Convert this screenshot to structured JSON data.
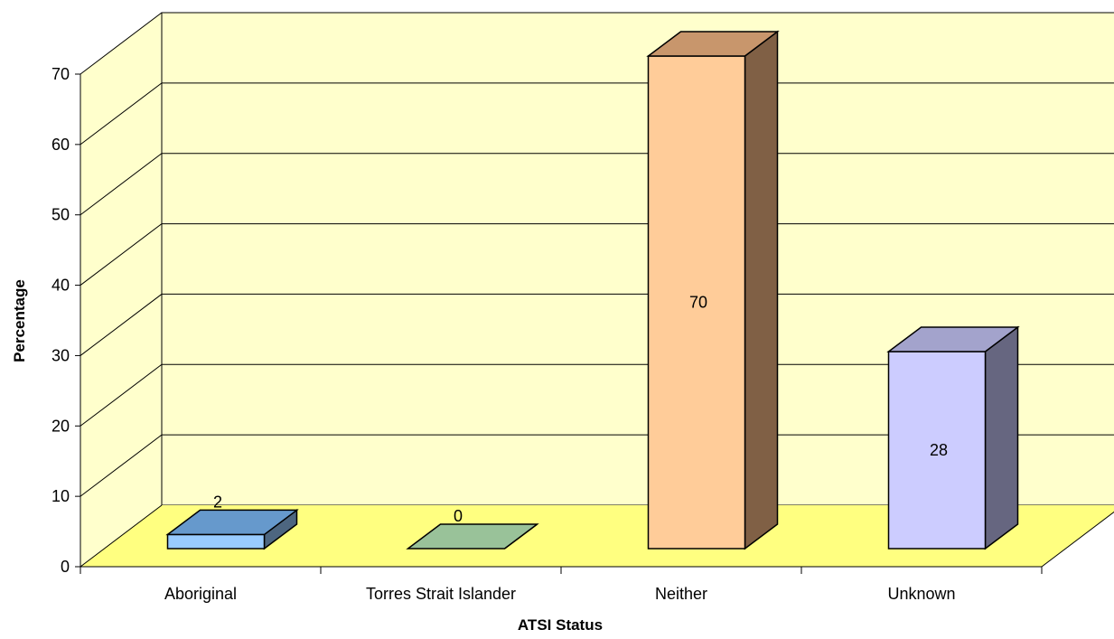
{
  "chart_data": {
    "type": "bar",
    "title": "",
    "xlabel": "ATSI Status",
    "ylabel": "Percentage",
    "categories": [
      "Aboriginal",
      "Torres Strait Islander",
      "Neither",
      "Unknown"
    ],
    "values": [
      2,
      0,
      70,
      28
    ],
    "data_labels": [
      "2",
      "0",
      "70",
      "28"
    ],
    "ylim": [
      0,
      70
    ],
    "yticks": [
      "0",
      "10",
      "20",
      "30",
      "40",
      "50",
      "60",
      "70"
    ],
    "grid": true,
    "legend": "none",
    "three_d": true,
    "colors": {
      "wall": "#FFFFCC",
      "floor": "#FFFF80",
      "bars": [
        {
          "front": "#99CCFF",
          "top": "#6699CC",
          "side": "#4D6680"
        },
        {
          "front": "#CCFFCC",
          "top": "#99C299",
          "side": "#6B866B"
        },
        {
          "front": "#FFCC99",
          "top": "#C8966C",
          "side": "#806045"
        },
        {
          "front": "#CCCCFF",
          "top": "#A3A3CC",
          "side": "#666680"
        }
      ]
    }
  }
}
